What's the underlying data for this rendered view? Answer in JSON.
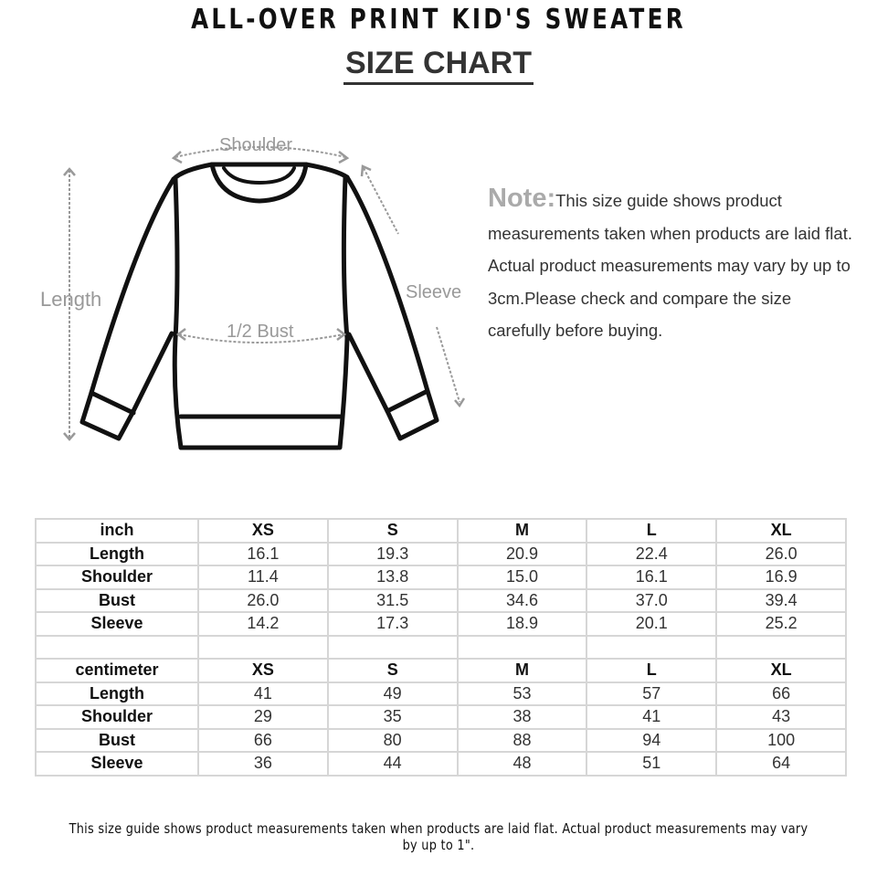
{
  "title": "ALL-OVER PRINT KID'S SWEATER",
  "subtitle": "SIZE CHART",
  "diagram": {
    "labels": {
      "shoulder": "Shoulder",
      "length": "Length",
      "sleeve": "Sleeve",
      "bust": "1/2 Bust"
    },
    "line_color": "#111111",
    "arrow_color": "#999999"
  },
  "note": {
    "heading": "Note:",
    "text": "This size guide shows product measurements taken when products are laid flat. Actual product measurements may vary by up to 3cm.Please check and compare the size carefully before buying."
  },
  "table": {
    "sections": [
      {
        "unit": "inch",
        "sizes": [
          "XS",
          "S",
          "M",
          "L",
          "XL"
        ],
        "rows": [
          {
            "label": "Length",
            "values": [
              "16.1",
              "19.3",
              "20.9",
              "22.4",
              "26.0"
            ]
          },
          {
            "label": "Shoulder",
            "values": [
              "11.4",
              "13.8",
              "15.0",
              "16.1",
              "16.9"
            ]
          },
          {
            "label": "Bust",
            "values": [
              "26.0",
              "31.5",
              "34.6",
              "37.0",
              "39.4"
            ]
          },
          {
            "label": "Sleeve",
            "values": [
              "14.2",
              "17.3",
              "18.9",
              "20.1",
              "25.2"
            ]
          }
        ]
      },
      {
        "unit": "centimeter",
        "sizes": [
          "XS",
          "S",
          "M",
          "L",
          "XL"
        ],
        "rows": [
          {
            "label": "Length",
            "values": [
              "41",
              "49",
              "53",
              "57",
              "66"
            ]
          },
          {
            "label": "Shoulder",
            "values": [
              "29",
              "35",
              "38",
              "41",
              "43"
            ]
          },
          {
            "label": "Bust",
            "values": [
              "66",
              "80",
              "88",
              "94",
              "100"
            ]
          },
          {
            "label": "Sleeve",
            "values": [
              "36",
              "44",
              "48",
              "51",
              "64"
            ]
          }
        ]
      }
    ]
  },
  "footer": "This size guide shows product measurements taken when products are laid flat. Actual product measurements may vary by up to 1\"."
}
